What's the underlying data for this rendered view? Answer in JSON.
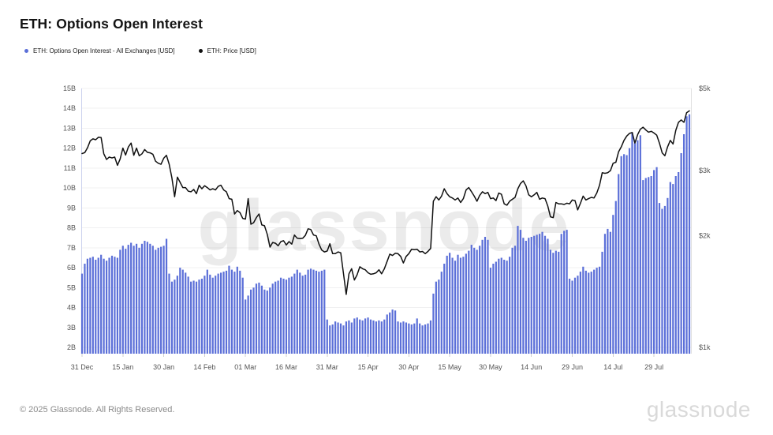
{
  "header": {
    "title": "ETH: Options Open Interest"
  },
  "legend": {
    "oi_label": "ETH: Options Open Interest - All Exchanges [USD]",
    "price_label": "ETH: Price [USD]",
    "oi_color": "#5b6fd8",
    "price_color": "#111111"
  },
  "watermark": "glassnode",
  "footer": {
    "copyright": "© 2025 Glassnode. All Rights Reserved.",
    "logo": "glassnode"
  },
  "chart_data": {
    "type": "bar",
    "title": "ETH: Options Open Interest",
    "x_start_label": "31 Dec",
    "x_interval": "daily",
    "x_tick_every_days": 15,
    "x_tick_labels": [
      "31 Dec",
      "15 Jan",
      "30 Jan",
      "14 Feb",
      "01 Mar",
      "16 Mar",
      "31 Mar",
      "15 Apr",
      "30 Apr",
      "15 May",
      "30 May",
      "14 Jun",
      "29 Jun",
      "14 Jul",
      "29 Jul"
    ],
    "grid": true,
    "legend_position": "top-left",
    "left_axis": {
      "title": "Options Open Interest (USD)",
      "scale": "linear",
      "min": 2,
      "max": 15,
      "ticks": [
        "15B",
        "14B",
        "13B",
        "12B",
        "11B",
        "10B",
        "9B",
        "8B",
        "7B",
        "6B",
        "5B",
        "4B",
        "3B",
        "2B"
      ]
    },
    "right_axis": {
      "title": "ETH Price (USD)",
      "scale": "log",
      "min": 1000,
      "max": 5000,
      "ticks": [
        "$5k",
        "$3k",
        "$2k",
        "$1k"
      ],
      "tick_values": [
        5000,
        3000,
        2000,
        1000
      ]
    },
    "series": [
      {
        "name": "ETH: Options Open Interest - All Exchanges [USD]",
        "type": "bar",
        "axis": "left",
        "unit": "USD billions",
        "color": "#5b6fd8",
        "values": [
          5.7,
          6.2,
          6.45,
          6.5,
          6.55,
          6.4,
          6.5,
          6.65,
          6.45,
          6.35,
          6.5,
          6.6,
          6.55,
          6.5,
          6.9,
          7.1,
          6.95,
          7.15,
          7.25,
          7.1,
          7.2,
          7.0,
          7.2,
          7.35,
          7.3,
          7.2,
          7.1,
          6.9,
          7.0,
          7.05,
          7.1,
          7.45,
          5.7,
          5.3,
          5.4,
          5.6,
          6.0,
          5.9,
          5.75,
          5.55,
          5.3,
          5.35,
          5.3,
          5.4,
          5.45,
          5.6,
          5.9,
          5.65,
          5.5,
          5.6,
          5.7,
          5.75,
          5.8,
          5.85,
          6.1,
          5.9,
          5.8,
          6.05,
          5.85,
          5.5,
          4.4,
          4.6,
          4.9,
          5.0,
          5.2,
          5.25,
          5.1,
          4.9,
          4.85,
          5.0,
          5.2,
          5.3,
          5.35,
          5.5,
          5.45,
          5.4,
          5.5,
          5.55,
          5.7,
          5.9,
          5.75,
          5.6,
          5.65,
          5.9,
          5.95,
          5.9,
          5.85,
          5.8,
          5.85,
          5.9,
          3.4,
          3.1,
          3.15,
          3.3,
          3.25,
          3.2,
          3.1,
          3.3,
          3.35,
          3.25,
          3.45,
          3.5,
          3.4,
          3.35,
          3.45,
          3.5,
          3.4,
          3.35,
          3.3,
          3.35,
          3.3,
          3.4,
          3.65,
          3.75,
          3.9,
          3.85,
          3.3,
          3.25,
          3.3,
          3.25,
          3.2,
          3.15,
          3.2,
          3.45,
          3.2,
          3.1,
          3.15,
          3.2,
          3.35,
          4.7,
          5.3,
          5.4,
          5.8,
          6.2,
          6.6,
          6.75,
          6.5,
          6.35,
          6.65,
          6.5,
          6.55,
          6.7,
          6.85,
          7.15,
          7.0,
          6.9,
          7.1,
          7.4,
          7.55,
          7.4,
          6.0,
          6.2,
          6.3,
          6.45,
          6.5,
          6.4,
          6.35,
          6.55,
          7.0,
          7.1,
          8.1,
          7.9,
          7.5,
          7.35,
          7.5,
          7.55,
          7.6,
          7.65,
          7.7,
          7.8,
          7.6,
          7.45,
          6.9,
          6.75,
          6.85,
          6.8,
          7.7,
          7.85,
          7.9,
          5.45,
          5.35,
          5.5,
          5.6,
          5.8,
          6.05,
          5.85,
          5.75,
          5.8,
          5.9,
          6.0,
          6.05,
          6.8,
          7.7,
          7.95,
          7.8,
          8.65,
          9.35,
          10.7,
          11.6,
          11.7,
          11.65,
          12.0,
          12.8,
          12.25,
          12.4,
          12.65,
          10.4,
          10.5,
          10.55,
          10.6,
          10.9,
          11.05,
          9.25,
          8.95,
          9.1,
          9.5,
          10.3,
          10.2,
          10.6,
          10.8,
          11.75,
          12.7,
          13.6,
          13.7
        ]
      },
      {
        "name": "ETH: Price [USD]",
        "type": "line",
        "axis": "right",
        "unit": "USD",
        "color": "#101010",
        "values": [
          3335,
          3355,
          3455,
          3610,
          3655,
          3635,
          3690,
          3685,
          3330,
          3215,
          3265,
          3245,
          3265,
          3100,
          3225,
          3450,
          3305,
          3475,
          3560,
          3300,
          3450,
          3290,
          3330,
          3420,
          3360,
          3350,
          3320,
          3180,
          3140,
          3120,
          3240,
          3300,
          3120,
          2870,
          2550,
          2880,
          2790,
          2700,
          2700,
          2640,
          2630,
          2670,
          2600,
          2740,
          2680,
          2730,
          2700,
          2660,
          2680,
          2660,
          2720,
          2740,
          2660,
          2630,
          2520,
          2510,
          2290,
          2340,
          2310,
          2230,
          2220,
          2520,
          2150,
          2170,
          2240,
          2290,
          2140,
          2130,
          2020,
          1865,
          1920,
          1910,
          1880,
          1930,
          1940,
          1890,
          1930,
          1900,
          2010,
          1970,
          1965,
          1970,
          2005,
          2090,
          2080,
          2010,
          2000,
          1900,
          1830,
          1810,
          1820,
          1905,
          1790,
          1790,
          1810,
          1800,
          1580,
          1390,
          1580,
          1630,
          1520,
          1570,
          1650,
          1630,
          1620,
          1590,
          1575,
          1580,
          1590,
          1620,
          1580,
          1630,
          1705,
          1785,
          1770,
          1795,
          1790,
          1760,
          1690,
          1760,
          1790,
          1840,
          1835,
          1840,
          1810,
          1815,
          1790,
          1815,
          1850,
          2480,
          2550,
          2500,
          2560,
          2680,
          2600,
          2550,
          2530,
          2500,
          2530,
          2460,
          2520,
          2660,
          2700,
          2630,
          2560,
          2480,
          2570,
          2630,
          2600,
          2620,
          2520,
          2530,
          2490,
          2610,
          2590,
          2440,
          2420,
          2480,
          2510,
          2540,
          2680,
          2770,
          2815,
          2730,
          2580,
          2550,
          2580,
          2620,
          2510,
          2530,
          2520,
          2410,
          2250,
          2240,
          2460,
          2440,
          2440,
          2430,
          2450,
          2440,
          2500,
          2490,
          2350,
          2450,
          2560,
          2500,
          2520,
          2540,
          2530,
          2610,
          2740,
          2960,
          2950,
          2960,
          3000,
          3140,
          3160,
          3370,
          3480,
          3620,
          3720,
          3780,
          3800,
          3560,
          3750,
          3880,
          3930,
          3860,
          3810,
          3830,
          3790,
          3740,
          3560,
          3350,
          3290,
          3480,
          3620,
          3540,
          3850,
          4050,
          4110,
          4050,
          4300,
          4350
        ]
      }
    ]
  }
}
